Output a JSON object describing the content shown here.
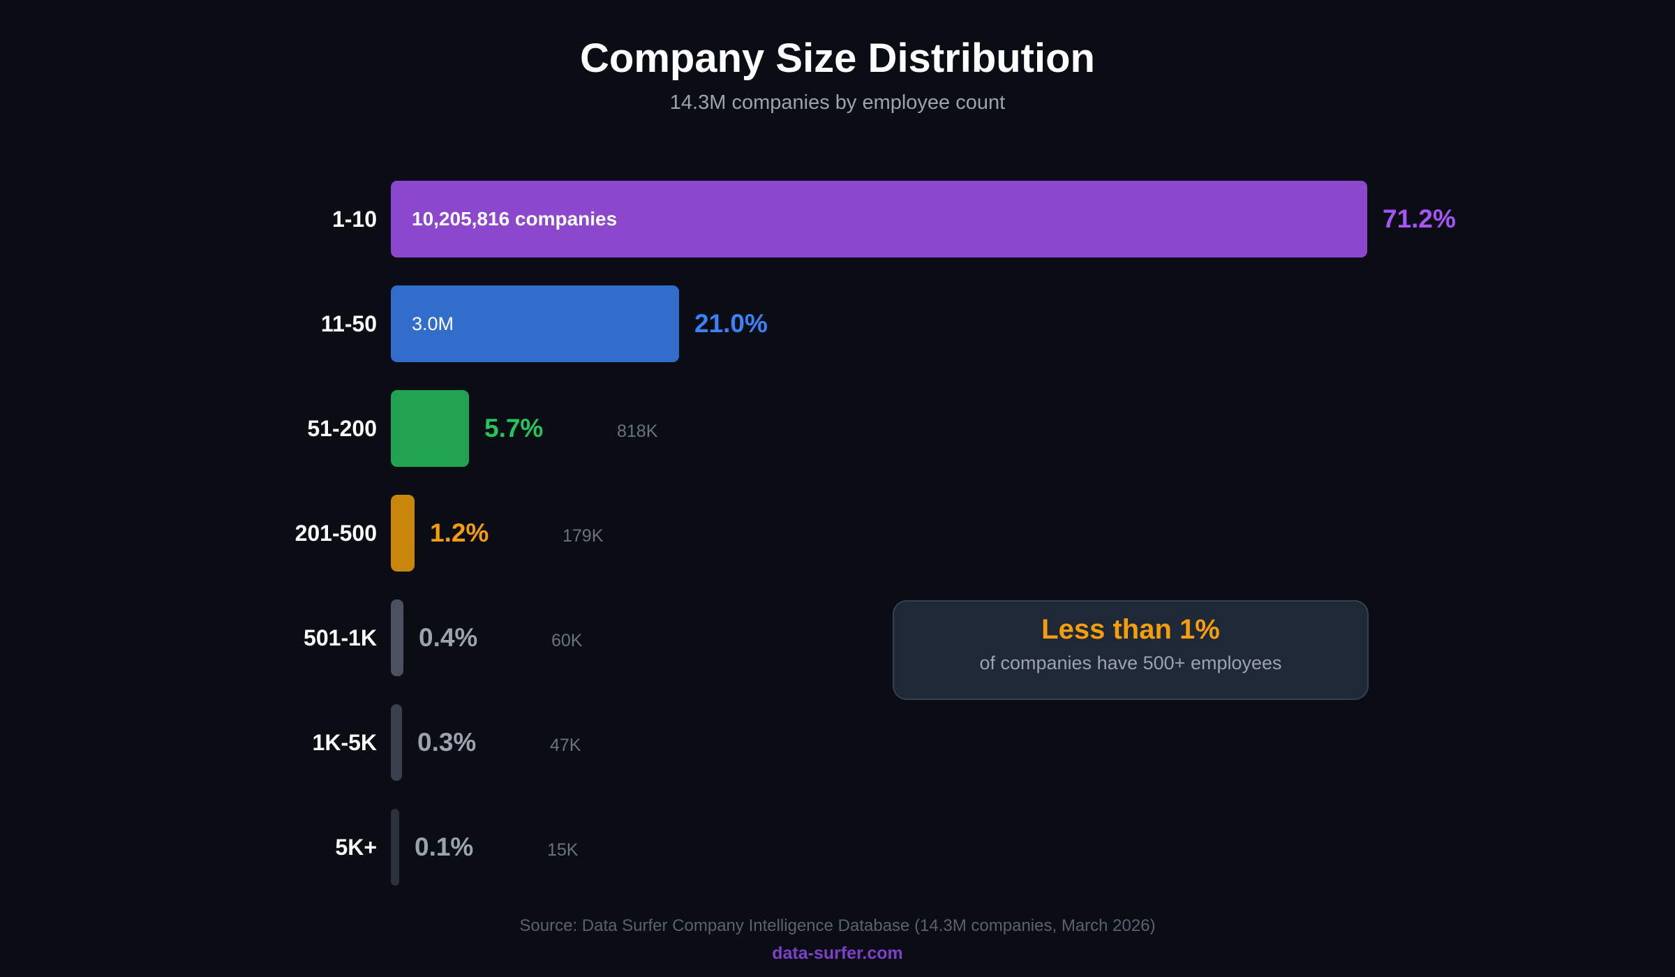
{
  "chart_data": {
    "type": "bar",
    "orientation": "horizontal",
    "title": "Company Size Distribution",
    "subtitle": "14.3M companies by employee count",
    "categories": [
      "1-10",
      "11-50",
      "51-200",
      "201-500",
      "501-1K",
      "1K-5K",
      "5K+"
    ],
    "values": [
      71.2,
      21.0,
      5.7,
      1.2,
      0.4,
      0.3,
      0.1
    ],
    "percent_labels": [
      "71.2%",
      "21.0%",
      "5.7%",
      "1.2%",
      "0.4%",
      "0.3%",
      "0.1%"
    ],
    "count_labels": [
      "10,205,816 companies",
      "3.0M",
      "818K",
      "179K",
      "60K",
      "47K",
      "15K"
    ],
    "count_inside_bar": [
      true,
      true,
      false,
      false,
      false,
      false,
      false
    ],
    "bar_colors": [
      "#8b48cc",
      "#326dcb",
      "#22a352",
      "#c8860d",
      "#4b5160",
      "#3b404c",
      "#2c313b"
    ],
    "label_colors": [
      "#a855f7",
      "#3b82f6",
      "#22c55e",
      "#f59e0b",
      "#9ca3af",
      "#9ca3af",
      "#9ca3af"
    ],
    "grid": false,
    "legend": "none"
  },
  "callout": {
    "title": "Less than 1%",
    "text": "of companies have 500+ employees"
  },
  "footer": {
    "source": "Source: Data Surfer Company Intelligence Database (14.3M companies, March 2026)",
    "link": "data-surfer.com"
  }
}
